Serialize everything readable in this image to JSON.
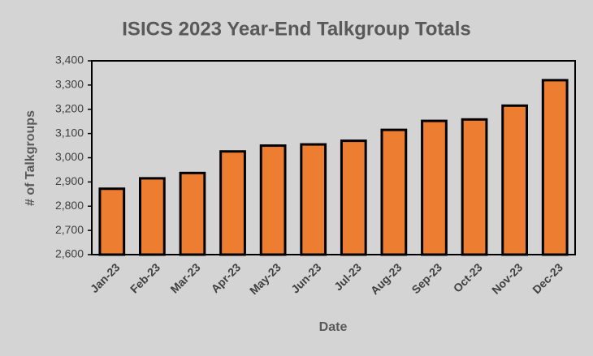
{
  "chart_data": {
    "type": "bar",
    "title": "ISICS 2023 Year-End Talkgroup Totals",
    "x_label": "Date",
    "y_label": "# of Talkgroups",
    "categories": [
      "Jan-23",
      "Feb-23",
      "Mar-23",
      "Apr-23",
      "May-23",
      "Jun-23",
      "Jul-23",
      "Aug-23",
      "Sep-23",
      "Oct-23",
      "Nov-23",
      "Dec-23"
    ],
    "values": [
      2872,
      2915,
      2937,
      3026,
      3050,
      3055,
      3070,
      3115,
      3152,
      3158,
      3215,
      3320
    ],
    "color": "#ed7d31",
    "ylim": [
      2600,
      3400
    ],
    "yticks": [
      {
        "value": 2600,
        "label": "2,600"
      },
      {
        "value": 2700,
        "label": "2,700"
      },
      {
        "value": 2800,
        "label": "2,800"
      },
      {
        "value": 2900,
        "label": "2,900"
      },
      {
        "value": 3000,
        "label": "3,000"
      },
      {
        "value": 3100,
        "label": "3,100"
      },
      {
        "value": 3200,
        "label": "3,200"
      },
      {
        "value": 3300,
        "label": "3,300"
      },
      {
        "value": 3400,
        "label": "3,400"
      }
    ],
    "grid": false
  }
}
